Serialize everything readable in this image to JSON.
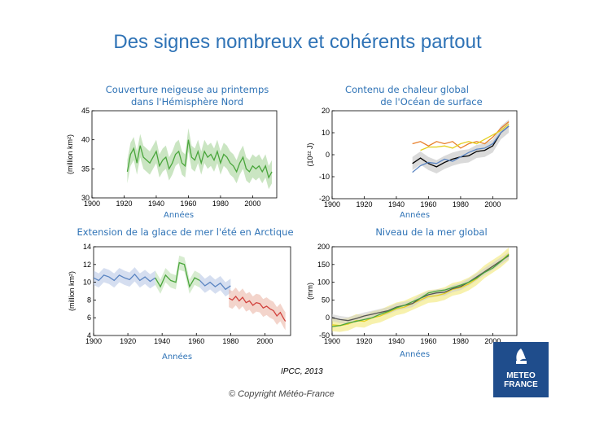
{
  "slide": {
    "title": "Des signes nombreux et cohérents partout",
    "source": "IPCC, 2013",
    "copyright": "© Copyright Météo-France"
  },
  "logo": {
    "line1": "METEO",
    "line2": "FRANCE"
  },
  "colors": {
    "title": "#2f73b6",
    "logo_bg": "#1f4d8c"
  },
  "chart_data": [
    {
      "type": "line",
      "title": "Couverture neigeuse au printemps dans l'Hémisphère Nord",
      "title_lines": [
        "Couverture neigeuse au printemps",
        "dans l'Hémisphère Nord"
      ],
      "xlabel": "Années",
      "ylabel": "(million km²)",
      "xlim": [
        1900,
        2015
      ],
      "ylim": [
        30,
        45
      ],
      "xticks": [
        1900,
        1920,
        1940,
        1960,
        1980,
        2000
      ],
      "yticks": [
        30,
        35,
        40,
        45
      ],
      "series": [
        {
          "color": "#4aa63c",
          "band_color": "#9fd08f",
          "band": 2,
          "x": [
            1922,
            1924,
            1926,
            1928,
            1930,
            1932,
            1934,
            1936,
            1938,
            1940,
            1942,
            1944,
            1946,
            1948,
            1950,
            1952,
            1954,
            1956,
            1958,
            1960,
            1962,
            1964,
            1966,
            1968,
            1970,
            1972,
            1974,
            1976,
            1978,
            1980,
            1982,
            1984,
            1986,
            1988,
            1990,
            1992,
            1994,
            1996,
            1998,
            2000,
            2002,
            2004,
            2006,
            2008,
            2010,
            2012
          ],
          "y": [
            34.5,
            37.5,
            38.5,
            36,
            39,
            37,
            36.5,
            36,
            37,
            38,
            35.5,
            36.5,
            37,
            35,
            36,
            37.5,
            38,
            36,
            35.5,
            40,
            37,
            36.5,
            38,
            36,
            38,
            37,
            37.5,
            36.5,
            38,
            36,
            37.5,
            37,
            36,
            35.5,
            34.5,
            36,
            37,
            35,
            34.5,
            35.5,
            35,
            35.5,
            34.5,
            35.5,
            33.5,
            34.5
          ]
        }
      ]
    },
    {
      "type": "line",
      "title": "Contenu de chaleur global de l'Océan de surface",
      "title_lines": [
        "Contenu de chaleur global",
        "de l'Océan de surface"
      ],
      "xlabel": "Années",
      "ylabel": "(10²² J)",
      "xlim": [
        1900,
        2015
      ],
      "ylim": [
        -20,
        20
      ],
      "xticks": [
        1900,
        1920,
        1940,
        1960,
        1980,
        2000
      ],
      "yticks": [
        -20,
        -10,
        0,
        10,
        20
      ],
      "series": [
        {
          "color": "#000000",
          "band_color": "#bbbbbb",
          "band": 3,
          "x": [
            1950,
            1955,
            1960,
            1965,
            1970,
            1975,
            1980,
            1985,
            1990,
            1995,
            2000,
            2005,
            2010
          ],
          "y": [
            -4,
            -1.5,
            -4,
            -5.5,
            -3.5,
            -2,
            -1,
            -0.5,
            1.5,
            2,
            4,
            10,
            13
          ]
        },
        {
          "color": "#e87f2a",
          "band": 0,
          "x": [
            1950,
            1955,
            1960,
            1965,
            1970,
            1975,
            1980,
            1985,
            1990,
            1995,
            2000,
            2005,
            2010
          ],
          "y": [
            5,
            6,
            4,
            6,
            5,
            6,
            3,
            5,
            6,
            5,
            8,
            12,
            15
          ]
        },
        {
          "color": "#e4d021",
          "band": 0,
          "x": [
            1955,
            1960,
            1965,
            1970,
            1975,
            1980,
            1985,
            1990,
            1995,
            2000,
            2005,
            2010
          ],
          "y": [
            2,
            3.5,
            3.5,
            4,
            3,
            5,
            6,
            5,
            7,
            9,
            11,
            14
          ]
        },
        {
          "color": "#5b85c2",
          "band": 0,
          "x": [
            1950,
            1955,
            1960,
            1965,
            1970,
            1975,
            1980,
            1985,
            1990,
            1995,
            2000,
            2005,
            2010
          ],
          "y": [
            -8,
            -5,
            -3.5,
            -4,
            -2,
            -3,
            -1,
            1,
            2.5,
            3,
            5,
            10,
            13
          ]
        }
      ]
    },
    {
      "type": "line",
      "title": "Extension de la glace de mer l'été en Arctique",
      "xlabel": "Années",
      "ylabel": "(million km²)",
      "xlim": [
        1900,
        2015
      ],
      "ylim": [
        4,
        14
      ],
      "xticks": [
        1900,
        1920,
        1940,
        1960,
        1980,
        2000
      ],
      "yticks": [
        4,
        6,
        8,
        10,
        12,
        14
      ],
      "series": [
        {
          "color": "#5b85c2",
          "band_color": "#b3c3e3",
          "band": 0.8,
          "x": [
            1900,
            1903,
            1906,
            1909,
            1912,
            1915,
            1918,
            1921,
            1924,
            1927,
            1930,
            1933,
            1936
          ],
          "y": [
            10.5,
            10.2,
            10.8,
            10.6,
            10.2,
            10.8,
            10.5,
            10.3,
            10.9,
            10.2,
            10.6,
            10.1,
            10.5
          ]
        },
        {
          "color": "#4aa63c",
          "band_color": "#b7dca9",
          "band": 0.8,
          "x": [
            1936,
            1939,
            1942,
            1945,
            1948,
            1950,
            1953,
            1956,
            1959,
            1962
          ],
          "y": [
            10.5,
            9.5,
            10.8,
            10.2,
            10.0,
            12.2,
            12.0,
            9.5,
            10.5,
            10.2
          ]
        },
        {
          "color": "#5b85c2",
          "band_color": "#b3c3e3",
          "band": 0.8,
          "x": [
            1962,
            1965,
            1968,
            1971,
            1974,
            1977,
            1980
          ],
          "y": [
            10.2,
            9.6,
            10.0,
            9.5,
            9.9,
            9.2,
            9.6
          ]
        },
        {
          "color": "#d2413c",
          "band_color": "#e9b0a0",
          "band": 1.0,
          "x": [
            1979,
            1981,
            1983,
            1985,
            1987,
            1989,
            1991,
            1993,
            1995,
            1997,
            1999,
            2001,
            2003,
            2005,
            2007,
            2009,
            2011,
            2012
          ],
          "y": [
            8.2,
            8.0,
            8.4,
            7.9,
            8.3,
            7.7,
            7.9,
            7.4,
            7.7,
            7.6,
            7.1,
            7.3,
            7.0,
            6.8,
            6.2,
            6.6,
            5.9,
            5.6
          ]
        }
      ]
    },
    {
      "type": "line",
      "title": "Niveau de la mer global",
      "xlabel": "Années",
      "ylabel": "(mm)",
      "xlim": [
        1900,
        2015
      ],
      "ylim": [
        -50,
        200
      ],
      "xticks": [
        1900,
        1920,
        1940,
        1960,
        1980,
        2000
      ],
      "yticks": [
        -50,
        0,
        50,
        100,
        150,
        200
      ],
      "series": [
        {
          "color": "#e4d021",
          "band_color": "#f1e66a",
          "band": 18,
          "x": [
            1900,
            1905,
            1910,
            1915,
            1920,
            1925,
            1930,
            1935,
            1940,
            1945,
            1950,
            1955,
            1960,
            1965,
            1970,
            1975,
            1980,
            1985,
            1990,
            1995,
            2000,
            2005,
            2010
          ],
          "y": [
            -20,
            -22,
            -18,
            -8,
            -10,
            0,
            5,
            15,
            25,
            30,
            40,
            50,
            60,
            62,
            68,
            80,
            85,
            95,
            110,
            130,
            145,
            160,
            180
          ]
        },
        {
          "color": "#555555",
          "band_color": "#cccccc",
          "band": 10,
          "x": [
            1900,
            1905,
            1910,
            1915,
            1920,
            1925,
            1930,
            1935,
            1940,
            1945,
            1950,
            1955,
            1960,
            1965,
            1970,
            1975,
            1980,
            1985,
            1990,
            1995,
            2000,
            2005,
            2010
          ],
          "y": [
            0,
            -5,
            -8,
            -2,
            5,
            10,
            15,
            20,
            30,
            35,
            40,
            55,
            65,
            70,
            72,
            82,
            88,
            100,
            115,
            130,
            145,
            160,
            175
          ]
        },
        {
          "color": "#4aa63c",
          "band": 0,
          "x": [
            1900,
            1905,
            1910,
            1915,
            1920,
            1925,
            1930,
            1935,
            1940,
            1945,
            1950,
            1955,
            1960,
            1965,
            1970,
            1975,
            1980,
            1985,
            1990,
            1995,
            2000,
            2005,
            2010
          ],
          "y": [
            -25,
            -22,
            -15,
            -10,
            -5,
            0,
            10,
            18,
            28,
            35,
            45,
            55,
            70,
            75,
            78,
            85,
            92,
            100,
            112,
            128,
            140,
            158,
            178
          ]
        }
      ]
    }
  ]
}
